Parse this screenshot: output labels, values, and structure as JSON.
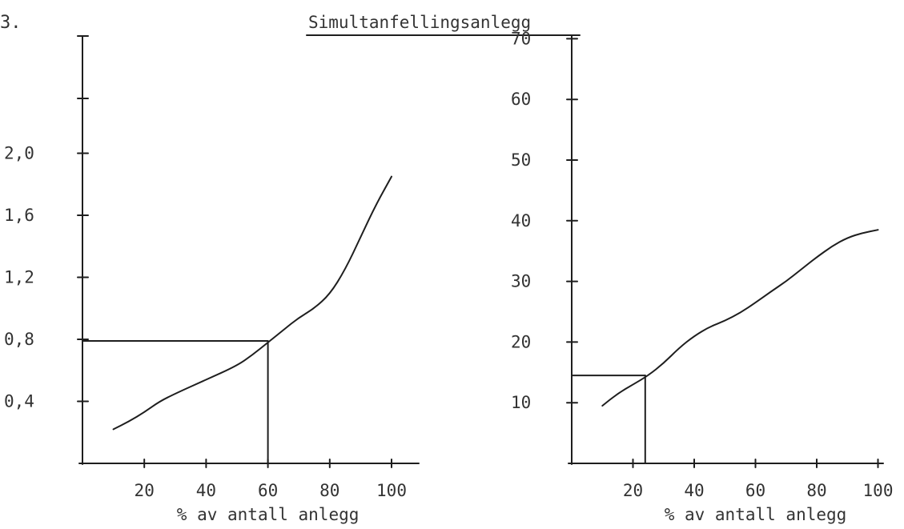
{
  "page_label": "3.",
  "chart_data": [
    {
      "type": "line",
      "title": "",
      "xlabel": "% av antall anlegg",
      "ylabel": "",
      "xlim": [
        0,
        110
      ],
      "ylim": [
        0,
        2.6
      ],
      "x_tick_labels": [
        "20",
        "40",
        "60",
        "80",
        "100"
      ],
      "y_tick_labels": [
        "0,4",
        "0,8",
        "1,2",
        "1,6",
        "2,0"
      ],
      "series": [
        {
          "x": [
            10,
            15,
            20,
            25,
            30,
            40,
            50,
            55,
            60,
            65,
            70,
            75,
            80,
            85,
            90,
            95,
            100
          ],
          "y": [
            0.22,
            0.27,
            0.33,
            0.4,
            0.45,
            0.54,
            0.63,
            0.7,
            0.78,
            0.86,
            0.94,
            1.0,
            1.09,
            1.25,
            1.46,
            1.67,
            1.85
          ]
        }
      ],
      "reference_lines": [
        {
          "x": 60,
          "y": 0.79
        }
      ]
    },
    {
      "type": "line",
      "title": "Simultanfellingsanlegg",
      "xlabel": "% av antall anlegg",
      "ylabel": "",
      "xlim": [
        0,
        110
      ],
      "ylim": [
        0,
        75
      ],
      "x_tick_labels": [
        "20",
        "40",
        "60",
        "80",
        "100"
      ],
      "y_tick_labels": [
        "10",
        "20",
        "30",
        "40",
        "50",
        "60",
        "70"
      ],
      "series": [
        {
          "x": [
            10,
            15,
            20,
            25,
            30,
            35,
            40,
            45,
            50,
            55,
            60,
            65,
            70,
            75,
            80,
            85,
            90,
            95,
            100
          ],
          "y": [
            9.5,
            11.5,
            13.0,
            14.5,
            16.5,
            19.0,
            21.0,
            22.5,
            23.5,
            24.8,
            26.5,
            28.3,
            30.0,
            32.0,
            34.0,
            35.8,
            37.2,
            38.0,
            38.5
          ]
        }
      ],
      "reference_lines": [
        {
          "x": 24,
          "y": 14.5
        }
      ]
    }
  ]
}
